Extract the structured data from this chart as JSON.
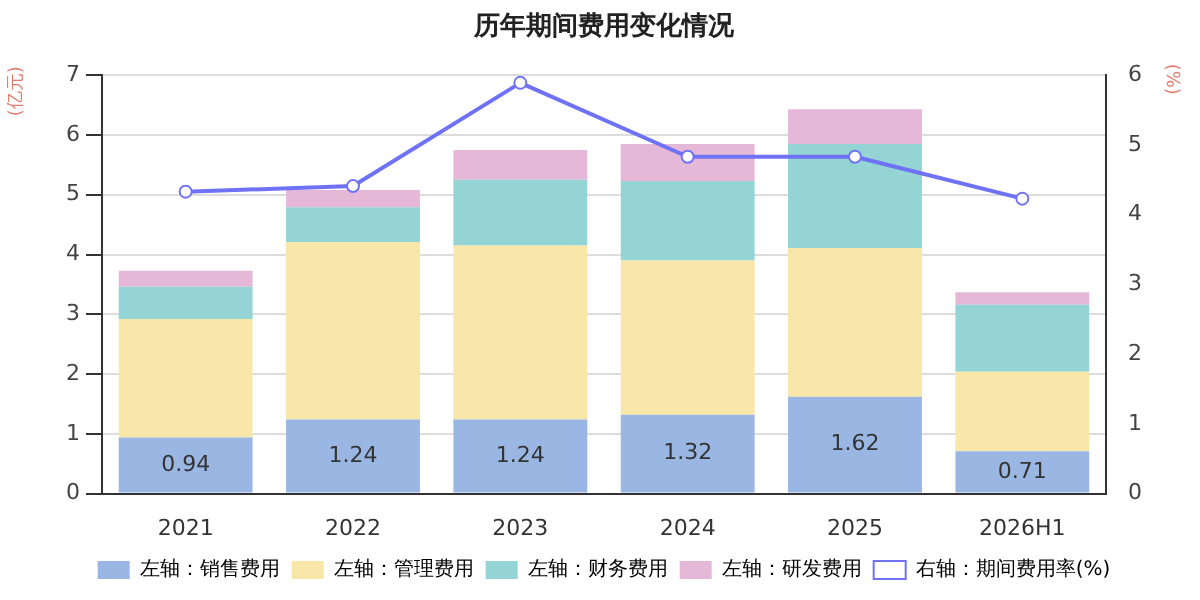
{
  "chart_data": {
    "type": "bar",
    "title": "历年期间费用变化情况",
    "ylabel": "(亿元)",
    "y2label": "(%)",
    "categories": [
      "2021",
      "2022",
      "2023",
      "2024",
      "2025",
      "2026H1"
    ],
    "stacked": true,
    "series": [
      {
        "name": "左轴：销售费用",
        "color": "#9ab6e2",
        "values": [
          0.94,
          1.24,
          1.24,
          1.32,
          1.62,
          0.71
        ],
        "value_labels": [
          "0.94",
          "1.24",
          "1.24",
          "1.32",
          "1.62",
          "0.71"
        ]
      },
      {
        "name": "左轴：管理费用",
        "color": "#f8e7a9",
        "values": [
          1.98,
          2.97,
          2.91,
          2.58,
          2.49,
          1.33
        ]
      },
      {
        "name": "左轴：财务费用",
        "color": "#94d4d4",
        "values": [
          0.54,
          0.58,
          1.1,
          1.33,
          1.74,
          1.12
        ]
      },
      {
        "name": "左轴：研发费用",
        "color": "#e6b8d8",
        "values": [
          0.27,
          0.29,
          0.5,
          0.62,
          0.58,
          0.21
        ]
      },
      {
        "name": "右轴：期间费用率(%)",
        "type": "line",
        "axis": "y2",
        "color": "#6f72f5",
        "marker": "circle",
        "values": [
          4.33,
          4.41,
          5.89,
          4.83,
          4.83,
          4.23
        ]
      }
    ],
    "ylim": [
      0,
      7
    ],
    "yticks": [
      0,
      1,
      2,
      3,
      4,
      5,
      6,
      7
    ],
    "y2lim": [
      0,
      6
    ],
    "y2ticks": [
      0,
      1,
      2,
      3,
      4,
      5,
      6
    ],
    "grid": "y",
    "legend": "bottom"
  }
}
